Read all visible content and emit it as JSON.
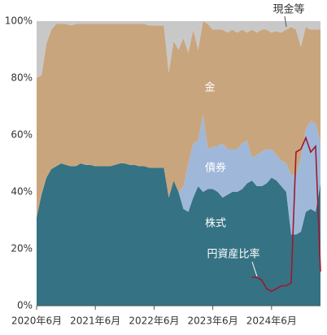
{
  "chart_data": {
    "type": "stacked_area",
    "categories": [
      "2020年6月",
      null,
      null,
      null,
      null,
      null,
      null,
      null,
      null,
      null,
      null,
      null,
      "2021年6月",
      null,
      null,
      null,
      null,
      null,
      null,
      null,
      null,
      null,
      null,
      null,
      "2022年6月",
      null,
      null,
      null,
      null,
      null,
      null,
      null,
      null,
      null,
      null,
      null,
      "2023年6月",
      null,
      null,
      null,
      null,
      null,
      null,
      null,
      null,
      null,
      null,
      null,
      "2024年6月",
      null,
      null,
      null,
      null,
      null,
      null,
      null,
      null,
      null,
      null
    ],
    "series": [
      {
        "name": "株式",
        "color": "#357283",
        "values": [
          31,
          39,
          45,
          48,
          49,
          50,
          49.5,
          49,
          49,
          50,
          49.5,
          49.5,
          49,
          49,
          49,
          49,
          49.5,
          50,
          50,
          49.5,
          49.5,
          49,
          49,
          48.5,
          48.5,
          48.5,
          48.5,
          38,
          44,
          40,
          34,
          33,
          38,
          42,
          40,
          41,
          41,
          40,
          38,
          39,
          40,
          40,
          41,
          43,
          44,
          42,
          42,
          43,
          45,
          44,
          42,
          40,
          25,
          25,
          26,
          33,
          34,
          33,
          43
        ]
      },
      {
        "name": "債券",
        "color": "#9fb8d9",
        "values": [
          0,
          0,
          0,
          0,
          0,
          0,
          0,
          0,
          0,
          0,
          0,
          0,
          0,
          0,
          0,
          0,
          0,
          0,
          0,
          0,
          0,
          0,
          0,
          0,
          0,
          0,
          0,
          0,
          0,
          0,
          8,
          17,
          19,
          16,
          27,
          14,
          15,
          16,
          19,
          16,
          15,
          15,
          16,
          15,
          8,
          11,
          12,
          12,
          10,
          9,
          9,
          10,
          21,
          21,
          26,
          29,
          31,
          31,
          14
        ]
      },
      {
        "name": "金",
        "color": "#c9a57e",
        "values": [
          49,
          42,
          47,
          49,
          50,
          49,
          49.5,
          49.5,
          50,
          49,
          49.5,
          49.5,
          50,
          50,
          50,
          50,
          49.5,
          49,
          49,
          49.5,
          49.5,
          50,
          50,
          50,
          50,
          50,
          50,
          44,
          49,
          50,
          52,
          39,
          40,
          32,
          33,
          44,
          41,
          41,
          40,
          41,
          42,
          41,
          40,
          38,
          45,
          43,
          43,
          42,
          41,
          43.5,
          45,
          47,
          52,
          51,
          39,
          36,
          32,
          33,
          40
        ]
      },
      {
        "name": "現金等",
        "color": "#c8c8c8",
        "values": [
          20,
          19,
          8,
          3,
          1,
          1,
          1,
          1.5,
          1,
          1,
          1,
          1,
          1,
          1,
          1,
          1,
          1,
          1,
          1,
          1,
          1,
          1,
          1,
          1.5,
          1.5,
          1.5,
          1.5,
          18,
          7,
          10,
          6,
          11,
          3,
          10,
          0,
          1,
          3,
          3,
          3,
          4,
          3,
          4,
          3,
          4,
          3,
          4,
          3,
          3,
          4,
          3.5,
          4,
          3,
          2,
          3,
          9,
          2,
          3,
          3,
          3
        ]
      },
      {
        "name": "円資産比率",
        "type": "line",
        "color": "#a01830",
        "values": [
          null,
          null,
          null,
          null,
          null,
          null,
          null,
          null,
          null,
          null,
          null,
          null,
          null,
          null,
          null,
          null,
          null,
          null,
          null,
          null,
          null,
          null,
          null,
          null,
          null,
          null,
          null,
          null,
          null,
          null,
          null,
          null,
          null,
          null,
          null,
          null,
          null,
          null,
          null,
          null,
          null,
          null,
          null,
          null,
          10,
          10,
          9,
          6,
          5,
          6,
          7,
          7,
          8,
          54,
          55,
          59,
          54,
          56,
          12
        ]
      }
    ],
    "ylim": [
      0,
      100
    ],
    "yticks": [
      {
        "value": 0,
        "label": "0%"
      },
      {
        "value": 20,
        "label": "20%"
      },
      {
        "value": 40,
        "label": "40%"
      },
      {
        "value": 60,
        "label": "60%"
      },
      {
        "value": 80,
        "label": "80%"
      },
      {
        "value": 100,
        "label": "100%"
      }
    ]
  }
}
